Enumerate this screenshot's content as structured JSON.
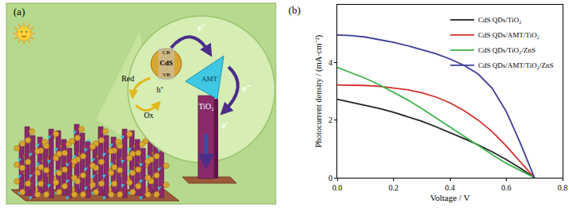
{
  "diagram": {
    "panel_label": "(a)",
    "cb": "CB",
    "qd": "CdS",
    "vb": "VB",
    "electron": "e⁻",
    "hole": "h⁺",
    "reduced": "Red",
    "oxidized": "Ox",
    "linker": "AMT",
    "substrate": "TiO₂"
  },
  "chart_data": {
    "type": "line",
    "annotations": [
      "(b)"
    ],
    "xlabel": "Voltage / V",
    "ylabel": "Photocurrent density / (mA·cm⁻²)",
    "x": [
      0,
      0.05,
      0.1,
      0.15,
      0.2,
      0.25,
      0.3,
      0.35,
      0.4,
      0.45,
      0.5,
      0.55,
      0.6,
      0.65,
      0.7
    ],
    "series": [
      {
        "name": "CdS QDs/TiO₂",
        "color": "#222222",
        "values": [
          2.72,
          2.62,
          2.52,
          2.4,
          2.27,
          2.12,
          1.96,
          1.77,
          1.57,
          1.36,
          1.14,
          0.9,
          0.63,
          0.33,
          0
        ]
      },
      {
        "name": "CdS QDs/AMT/TiO₂",
        "color": "#d0312d",
        "values": [
          3.22,
          3.22,
          3.2,
          3.17,
          3.12,
          3.05,
          2.95,
          2.8,
          2.6,
          2.33,
          2.0,
          1.6,
          1.1,
          0.55,
          0
        ]
      },
      {
        "name": "CdS QDs/TiO₂/ZnS",
        "color": "#3cb44b",
        "values": [
          3.83,
          3.65,
          3.45,
          3.22,
          2.97,
          2.7,
          2.4,
          2.08,
          1.75,
          1.42,
          1.1,
          0.8,
          0.5,
          0.25,
          0
        ]
      },
      {
        "name": "CdS QDs/AMT/TiO₂/ZnS",
        "color": "#3d3d99",
        "values": [
          4.95,
          4.93,
          4.88,
          4.8,
          4.7,
          4.58,
          4.45,
          4.3,
          4.12,
          3.9,
          3.6,
          3.1,
          2.3,
          1.2,
          0
        ]
      }
    ],
    "xlim": [
      0,
      0.8
    ],
    "xticks": [
      {
        "value": 0,
        "label": "0.0"
      },
      0.2,
      0.4,
      0.6,
      0.8
    ],
    "ylim": [
      0,
      6
    ],
    "yticks": [
      0,
      2,
      4
    ],
    "grid": false,
    "legend": "upper right"
  }
}
